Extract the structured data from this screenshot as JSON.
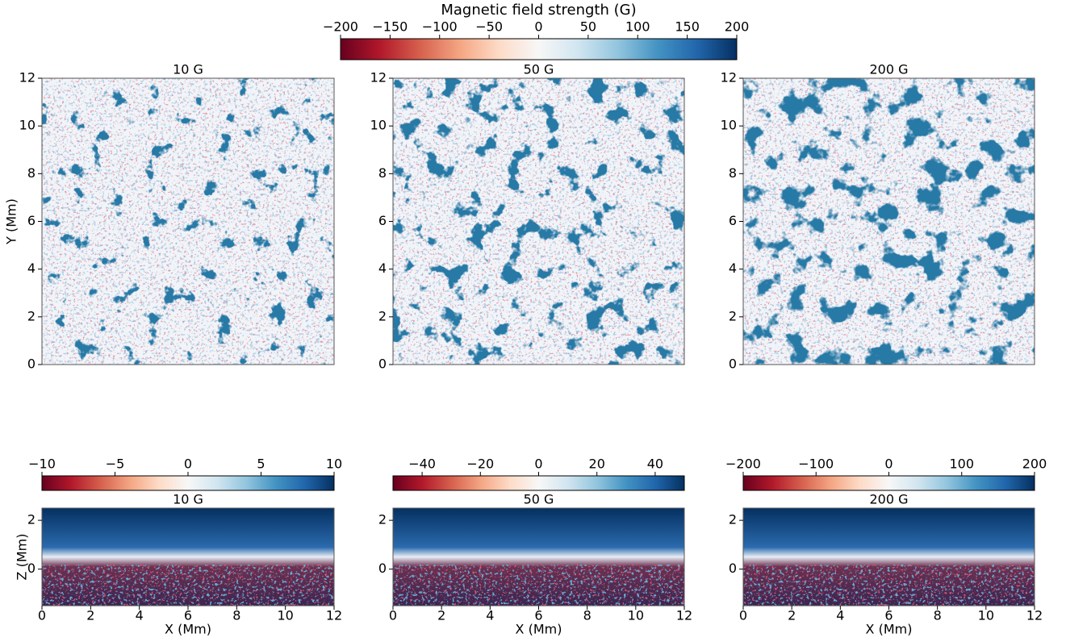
{
  "chart_data": [
    {
      "type": "colorbar",
      "label": "Magnetic field strength (G)",
      "lim": [
        -200,
        200
      ],
      "ticks": [
        {
          "value": -200,
          "label": "−200"
        },
        {
          "value": -150,
          "label": "−150"
        },
        {
          "value": -100,
          "label": "−100"
        },
        {
          "value": -50,
          "label": "−50"
        },
        0,
        50,
        100,
        150,
        200
      ],
      "colormap": [
        "#67001f",
        "#b2182b",
        "#d6604d",
        "#f4a582",
        "#fddbc7",
        "#f7f7f7",
        "#d1e5f0",
        "#92c5de",
        "#4393c3",
        "#2166ac",
        "#053061"
      ]
    },
    {
      "type": "heatmap",
      "title": "10 G",
      "xlim": [
        0,
        12
      ],
      "ylim": [
        0,
        12
      ],
      "yticks": [
        0,
        2,
        4,
        6,
        8,
        10,
        12
      ],
      "ylabel": "Y (Mm)"
    },
    {
      "type": "heatmap",
      "title": "50 G",
      "xlim": [
        0,
        12
      ],
      "ylim": [
        0,
        12
      ],
      "yticks": [
        0,
        2,
        4,
        6,
        8,
        10,
        12
      ]
    },
    {
      "type": "heatmap",
      "title": "200 G",
      "xlim": [
        0,
        12
      ],
      "ylim": [
        0,
        12
      ],
      "yticks": [
        0,
        2,
        4,
        6,
        8,
        10,
        12
      ]
    },
    {
      "type": "colorbar",
      "lim": [
        -10,
        10
      ],
      "ticks": [
        {
          "value": -10,
          "label": "−10"
        },
        {
          "value": -5,
          "label": "−5"
        },
        0,
        5,
        10
      ],
      "colormap": [
        "#67001f",
        "#b2182b",
        "#d6604d",
        "#f4a582",
        "#fddbc7",
        "#f7f7f7",
        "#d1e5f0",
        "#92c5de",
        "#4393c3",
        "#2166ac",
        "#053061"
      ]
    },
    {
      "type": "heatmap",
      "title": "10 G",
      "xlim": [
        0,
        12
      ],
      "ylim": [
        -1.5,
        2.5
      ],
      "xticks": [
        0,
        2,
        4,
        6,
        8,
        10,
        12
      ],
      "yticks": [
        0,
        2
      ],
      "xlabel": "X (Mm)",
      "ylabel": "Z (Mm)"
    },
    {
      "type": "colorbar",
      "lim": [
        -50,
        50
      ],
      "ticks": [
        {
          "value": -40,
          "label": "−40"
        },
        {
          "value": -20,
          "label": "−20"
        },
        0,
        20,
        40
      ],
      "colormap": [
        "#67001f",
        "#b2182b",
        "#d6604d",
        "#f4a582",
        "#fddbc7",
        "#f7f7f7",
        "#d1e5f0",
        "#92c5de",
        "#4393c3",
        "#2166ac",
        "#053061"
      ]
    },
    {
      "type": "heatmap",
      "title": "50 G",
      "xlim": [
        0,
        12
      ],
      "ylim": [
        -1.5,
        2.5
      ],
      "xticks": [
        0,
        2,
        4,
        6,
        8,
        10,
        12
      ],
      "yticks": [
        0,
        2
      ],
      "xlabel": "X (Mm)"
    },
    {
      "type": "colorbar",
      "lim": [
        -200,
        200
      ],
      "ticks": [
        {
          "value": -200,
          "label": "−200"
        },
        {
          "value": -100,
          "label": "−100"
        },
        0,
        100,
        200
      ],
      "colormap": [
        "#67001f",
        "#b2182b",
        "#d6604d",
        "#f4a582",
        "#fddbc7",
        "#f7f7f7",
        "#d1e5f0",
        "#92c5de",
        "#4393c3",
        "#2166ac",
        "#053061"
      ]
    },
    {
      "type": "heatmap",
      "title": "200 G",
      "xlim": [
        0,
        12
      ],
      "ylim": [
        -1.5,
        2.5
      ],
      "xticks": [
        0,
        2,
        4,
        6,
        8,
        10,
        12
      ],
      "yticks": [
        0,
        2
      ],
      "xlabel": "X (Mm)"
    }
  ]
}
